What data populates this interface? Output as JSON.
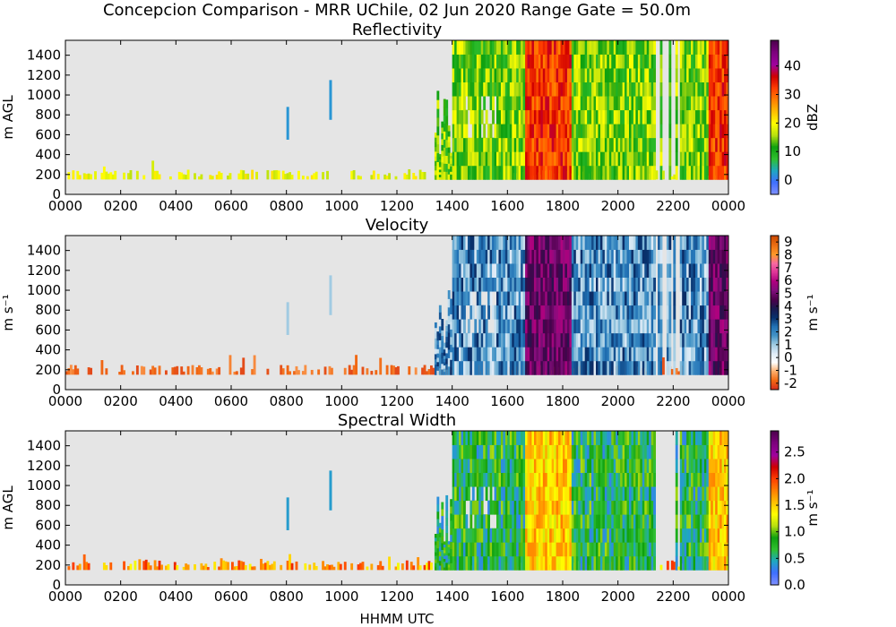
{
  "figure": {
    "title": "Concepcion Comparison - MRR UChile, 02 Jun 2020 Range Gate = 50.0m",
    "xlabel": "HHMM UTC"
  },
  "chart_data": [
    {
      "type": "heatmap",
      "title": "Reflectivity",
      "ylabel": "m AGL",
      "x_tick_labels": [
        "0000",
        "0200",
        "0400",
        "0600",
        "0800",
        "1000",
        "1200",
        "1400",
        "1600",
        "1800",
        "2000",
        "2200",
        "0000"
      ],
      "y_ticks": [
        0,
        200,
        400,
        600,
        800,
        1000,
        1200,
        1400
      ],
      "ylim": [
        0,
        1550
      ],
      "colorbar": {
        "label": "dBZ",
        "range": [
          -5,
          49
        ],
        "ticks": [
          0,
          10,
          20,
          30,
          40
        ],
        "colors": [
          "#7f8fff",
          "#3f6fff",
          "#1fa8c0",
          "#2fbf2f",
          "#0fa00f",
          "#b8e00f",
          "#ffff00",
          "#ffbf00",
          "#ff7f00",
          "#ff3f00",
          "#d00000",
          "#a0009f",
          "#7f007f",
          "#4f004f"
        ]
      },
      "background_color": "#e5e5e5"
    },
    {
      "type": "heatmap",
      "title": "Velocity",
      "ylabel": "m s⁻¹",
      "y_ticks": [
        0,
        200,
        400,
        600,
        800,
        1000,
        1200,
        1400
      ],
      "ylim": [
        0,
        1550
      ],
      "x_tick_labels": [
        "0000",
        "0200",
        "0400",
        "0600",
        "0800",
        "1000",
        "1200",
        "1400",
        "1600",
        "1800",
        "2000",
        "2200",
        "0000"
      ],
      "colorbar": {
        "label": "m s⁻¹",
        "range": [
          -2.5,
          9.5
        ],
        "ticks": [
          -2,
          -1,
          0,
          1,
          2,
          3,
          4,
          5,
          6,
          7,
          8,
          9
        ],
        "colors": [
          "#d7301f",
          "#f16913",
          "#fdae6b",
          "#ffffff",
          "#deebf7",
          "#9ecae1",
          "#4292c6",
          "#2171b5",
          "#08306b",
          "#1a1a4f",
          "#4d004b",
          "#810f7c",
          "#ae017e",
          "#dd3497",
          "#f768a1",
          "#fe9929",
          "#ec7014",
          "#cc4c02"
        ]
      },
      "background_color": "#e5e5e5"
    },
    {
      "type": "heatmap",
      "title": "Spectral Width",
      "ylabel": "m AGL",
      "y_ticks": [
        0,
        200,
        400,
        600,
        800,
        1000,
        1200,
        1400
      ],
      "ylim": [
        0,
        1550
      ],
      "x_tick_labels": [
        "0000",
        "0200",
        "0400",
        "0600",
        "0800",
        "1000",
        "1200",
        "1400",
        "1600",
        "1800",
        "2000",
        "2200",
        "0000"
      ],
      "colorbar": {
        "label": "m s⁻¹",
        "range": [
          0,
          2.9
        ],
        "ticks": [
          0.0,
          0.5,
          1.0,
          1.5,
          2.0,
          2.5
        ],
        "tick_labels": [
          "0.0",
          "0.5",
          "1.0",
          "1.5",
          "2.0",
          "2.5"
        ],
        "colors": [
          "#7f8fff",
          "#3f6fff",
          "#1fa8c0",
          "#2fbf2f",
          "#0fa00f",
          "#b8e00f",
          "#ffff00",
          "#ffbf00",
          "#ff7f00",
          "#ff3f00",
          "#d00000",
          "#a0009f",
          "#7f007f",
          "#4f004f"
        ]
      },
      "background_color": "#e5e5e5"
    }
  ]
}
